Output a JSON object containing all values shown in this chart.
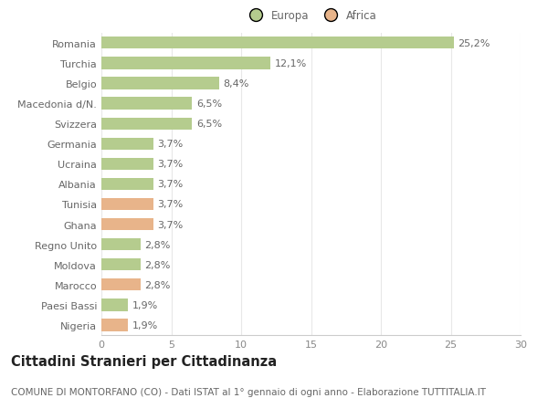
{
  "categories": [
    "Romania",
    "Turchia",
    "Belgio",
    "Macedonia d/N.",
    "Svizzera",
    "Germania",
    "Ucraina",
    "Albania",
    "Tunisia",
    "Ghana",
    "Regno Unito",
    "Moldova",
    "Marocco",
    "Paesi Bassi",
    "Nigeria"
  ],
  "values": [
    25.2,
    12.1,
    8.4,
    6.5,
    6.5,
    3.7,
    3.7,
    3.7,
    3.7,
    3.7,
    2.8,
    2.8,
    2.8,
    1.9,
    1.9
  ],
  "labels": [
    "25,2%",
    "12,1%",
    "8,4%",
    "6,5%",
    "6,5%",
    "3,7%",
    "3,7%",
    "3,7%",
    "3,7%",
    "3,7%",
    "2,8%",
    "2,8%",
    "2,8%",
    "1,9%",
    "1,9%"
  ],
  "continent": [
    "Europa",
    "Europa",
    "Europa",
    "Europa",
    "Europa",
    "Europa",
    "Europa",
    "Europa",
    "Africa",
    "Africa",
    "Europa",
    "Europa",
    "Africa",
    "Europa",
    "Africa"
  ],
  "color_europa": "#b5cc8e",
  "color_africa": "#e8b48a",
  "bg_color": "#ffffff",
  "plot_bg_color": "#ffffff",
  "title": "Cittadini Stranieri per Cittadinanza",
  "subtitle": "COMUNE DI MONTORFANO (CO) - Dati ISTAT al 1° gennaio di ogni anno - Elaborazione TUTTITALIA.IT",
  "xlim": [
    0,
    30
  ],
  "xticks": [
    0,
    5,
    10,
    15,
    20,
    25,
    30
  ],
  "legend_labels": [
    "Europa",
    "Africa"
  ],
  "legend_colors": [
    "#b5cc8e",
    "#e8b48a"
  ],
  "bar_height": 0.6,
  "label_fontsize": 8,
  "tick_fontsize": 8,
  "title_fontsize": 10.5,
  "subtitle_fontsize": 7.5,
  "grid_color": "#e8e8e8"
}
